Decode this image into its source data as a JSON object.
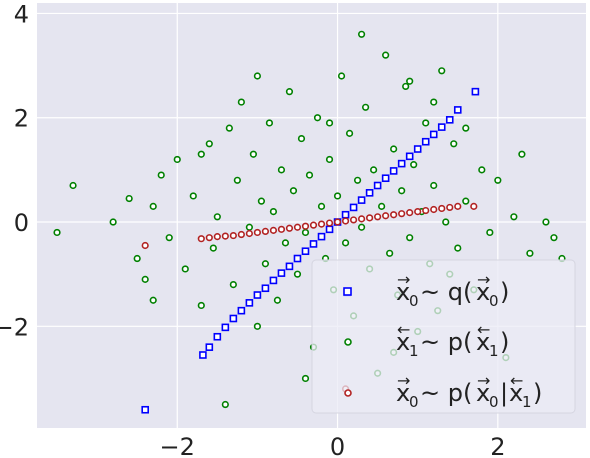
{
  "chart_data": {
    "type": "scatter",
    "title": "",
    "xlabel": "",
    "ylabel": "",
    "xlim": [
      -3.75,
      3.1
    ],
    "ylim": [
      -3.95,
      4.2
    ],
    "xticks": [
      -2,
      0,
      2
    ],
    "yticks": [
      -2,
      0,
      2,
      4
    ],
    "xtick_labels": [
      "−2",
      "0",
      "2"
    ],
    "ytick_labels": [
      "−2",
      "0",
      "2",
      "4"
    ],
    "grid": true,
    "style": "seaborn-darkgrid",
    "background_color": "#e5e5f0",
    "legend_placement": "lower-right",
    "series": [
      {
        "legend_label": {
          "var": "x",
          "arrow": "→",
          "sub": "0",
          "rest": " ~ q(",
          "var2": "x",
          "arrow2": "→",
          "sub2": "0",
          "close": ")"
        },
        "color": "#0000ff",
        "marker": "square",
        "note_shape": "samples lie along the line y = 1.4x",
        "points": [
          [
            -2.4,
            -3.6
          ],
          [
            -1.68,
            -2.55
          ],
          [
            -1.6,
            -2.4
          ],
          [
            -1.5,
            -2.2
          ],
          [
            -1.4,
            -2.02
          ],
          [
            -1.3,
            -1.85
          ],
          [
            -1.2,
            -1.7
          ],
          [
            -1.1,
            -1.55
          ],
          [
            -1.0,
            -1.4
          ],
          [
            -0.9,
            -1.27
          ],
          [
            -0.8,
            -1.12
          ],
          [
            -0.7,
            -0.98
          ],
          [
            -0.6,
            -0.85
          ],
          [
            -0.5,
            -0.7
          ],
          [
            -0.4,
            -0.56
          ],
          [
            -0.3,
            -0.42
          ],
          [
            -0.2,
            -0.28
          ],
          [
            -0.1,
            -0.14
          ],
          [
            0.0,
            0.0
          ],
          [
            0.1,
            0.14
          ],
          [
            0.2,
            0.28
          ],
          [
            0.3,
            0.42
          ],
          [
            0.4,
            0.56
          ],
          [
            0.5,
            0.7
          ],
          [
            0.6,
            0.84
          ],
          [
            0.7,
            0.98
          ],
          [
            0.8,
            1.12
          ],
          [
            0.9,
            1.26
          ],
          [
            1.0,
            1.4
          ],
          [
            1.1,
            1.54
          ],
          [
            1.2,
            1.68
          ],
          [
            1.3,
            1.82
          ],
          [
            1.4,
            1.96
          ],
          [
            1.5,
            2.15
          ],
          [
            1.72,
            2.5
          ],
          [
            0.12,
            -1.35
          ]
        ]
      },
      {
        "legend_label": {
          "var": "x",
          "arrow": "←",
          "sub": "1",
          "rest": " ~ p(",
          "var2": "x",
          "arrow2": "←",
          "sub2": "1",
          "close": ")"
        },
        "color": "#008000",
        "marker": "circle",
        "note_shape": "isotropic cloud centered at origin, std about 1",
        "points": [
          [
            -3.5,
            -0.2
          ],
          [
            -3.3,
            0.7
          ],
          [
            -2.8,
            0.0
          ],
          [
            -2.6,
            0.45
          ],
          [
            -2.5,
            -0.7
          ],
          [
            -2.4,
            -1.1
          ],
          [
            -2.3,
            0.3
          ],
          [
            -2.2,
            0.9
          ],
          [
            -2.1,
            -0.3
          ],
          [
            -2.0,
            1.2
          ],
          [
            -1.9,
            -0.9
          ],
          [
            -1.8,
            0.5
          ],
          [
            -1.7,
            -1.6
          ],
          [
            -1.6,
            1.5
          ],
          [
            -1.55,
            -0.5
          ],
          [
            -1.5,
            0.1
          ],
          [
            -1.4,
            -3.5
          ],
          [
            -1.35,
            1.8
          ],
          [
            -1.3,
            -1.2
          ],
          [
            -1.25,
            0.8
          ],
          [
            -1.2,
            2.3
          ],
          [
            -1.1,
            -0.1
          ],
          [
            -1.05,
            1.3
          ],
          [
            -1.0,
            -2.0
          ],
          [
            -0.95,
            0.4
          ],
          [
            -0.9,
            -0.8
          ],
          [
            -0.85,
            1.9
          ],
          [
            -0.8,
            0.2
          ],
          [
            -0.75,
            -1.5
          ],
          [
            -0.7,
            1.0
          ],
          [
            -0.65,
            -0.4
          ],
          [
            -0.6,
            2.5
          ],
          [
            -0.55,
            0.6
          ],
          [
            -0.5,
            -1.0
          ],
          [
            -0.45,
            1.6
          ],
          [
            -0.4,
            -0.2
          ],
          [
            -0.35,
            0.9
          ],
          [
            -0.3,
            -2.4
          ],
          [
            -0.25,
            2.0
          ],
          [
            -0.2,
            0.3
          ],
          [
            -0.15,
            -0.7
          ],
          [
            -0.1,
            1.2
          ],
          [
            -0.05,
            -1.3
          ],
          [
            0.0,
            0.5
          ],
          [
            0.05,
            2.8
          ],
          [
            0.1,
            -0.4
          ],
          [
            0.15,
            1.7
          ],
          [
            0.2,
            -1.8
          ],
          [
            0.25,
            0.8
          ],
          [
            0.3,
            -0.1
          ],
          [
            0.35,
            2.2
          ],
          [
            0.4,
            -0.9
          ],
          [
            0.45,
            1.0
          ],
          [
            0.5,
            -2.9
          ],
          [
            0.55,
            0.3
          ],
          [
            0.6,
            3.2
          ],
          [
            0.65,
            -0.6
          ],
          [
            0.7,
            1.4
          ],
          [
            0.75,
            -1.4
          ],
          [
            0.8,
            0.6
          ],
          [
            0.85,
            2.6
          ],
          [
            0.9,
            -0.3
          ],
          [
            0.95,
            1.1
          ],
          [
            1.0,
            -2.1
          ],
          [
            1.05,
            0.2
          ],
          [
            1.1,
            1.9
          ],
          [
            1.15,
            -0.8
          ],
          [
            1.2,
            0.7
          ],
          [
            1.25,
            -1.7
          ],
          [
            1.3,
            2.9
          ],
          [
            1.35,
            0.0
          ],
          [
            1.4,
            -1.0
          ],
          [
            1.45,
            1.5
          ],
          [
            1.5,
            -0.5
          ],
          [
            1.6,
            0.4
          ],
          [
            1.7,
            -1.3
          ],
          [
            1.8,
            1.0
          ],
          [
            1.9,
            -0.2
          ],
          [
            2.0,
            0.8
          ],
          [
            2.1,
            -2.6
          ],
          [
            2.2,
            0.1
          ],
          [
            2.3,
            1.3
          ],
          [
            2.4,
            -0.6
          ],
          [
            2.6,
            0.0
          ],
          [
            2.7,
            -0.3
          ],
          [
            2.8,
            -0.7
          ],
          [
            -1.0,
            2.8
          ],
          [
            0.9,
            2.7
          ],
          [
            -0.4,
            -3.0
          ],
          [
            1.2,
            2.3
          ],
          [
            -2.3,
            -1.5
          ],
          [
            0.3,
            3.6
          ],
          [
            -0.1,
            1.9
          ],
          [
            0.7,
            -2.5
          ],
          [
            1.6,
            1.8
          ],
          [
            -1.7,
            1.3
          ]
        ]
      },
      {
        "legend_label": {
          "var": "x",
          "arrow": "→",
          "sub": "0",
          "rest": " ~ p(",
          "var2": "x",
          "arrow2": "→",
          "sub2": "0",
          "bar": "|",
          "var3": "x",
          "arrow3": "←",
          "sub3": "1",
          "close": ")"
        },
        "color": "#b22222",
        "marker": "circle",
        "note_shape": "samples lie along the line y = 0.2x",
        "points": [
          [
            -2.4,
            -0.45
          ],
          [
            -1.7,
            -0.32
          ],
          [
            -1.6,
            -0.3
          ],
          [
            -1.5,
            -0.28
          ],
          [
            -1.4,
            -0.27
          ],
          [
            -1.3,
            -0.26
          ],
          [
            -1.2,
            -0.24
          ],
          [
            -1.1,
            -0.22
          ],
          [
            -1.0,
            -0.2
          ],
          [
            -0.9,
            -0.18
          ],
          [
            -0.8,
            -0.16
          ],
          [
            -0.7,
            -0.14
          ],
          [
            -0.6,
            -0.12
          ],
          [
            -0.5,
            -0.1
          ],
          [
            -0.4,
            -0.08
          ],
          [
            -0.3,
            -0.06
          ],
          [
            -0.2,
            -0.04
          ],
          [
            -0.1,
            -0.02
          ],
          [
            0.0,
            0.0
          ],
          [
            0.1,
            0.02
          ],
          [
            0.2,
            0.04
          ],
          [
            0.3,
            0.06
          ],
          [
            0.4,
            0.08
          ],
          [
            0.5,
            0.1
          ],
          [
            0.6,
            0.12
          ],
          [
            0.7,
            0.14
          ],
          [
            0.8,
            0.16
          ],
          [
            0.9,
            0.18
          ],
          [
            1.0,
            0.2
          ],
          [
            1.1,
            0.22
          ],
          [
            1.2,
            0.24
          ],
          [
            1.3,
            0.26
          ],
          [
            1.4,
            0.28
          ],
          [
            1.5,
            0.3
          ],
          [
            1.7,
            0.3
          ],
          [
            0.1,
            -3.2
          ]
        ]
      }
    ],
    "legend_background": "#ebebf5",
    "legend_border": "#d8d8e2"
  }
}
